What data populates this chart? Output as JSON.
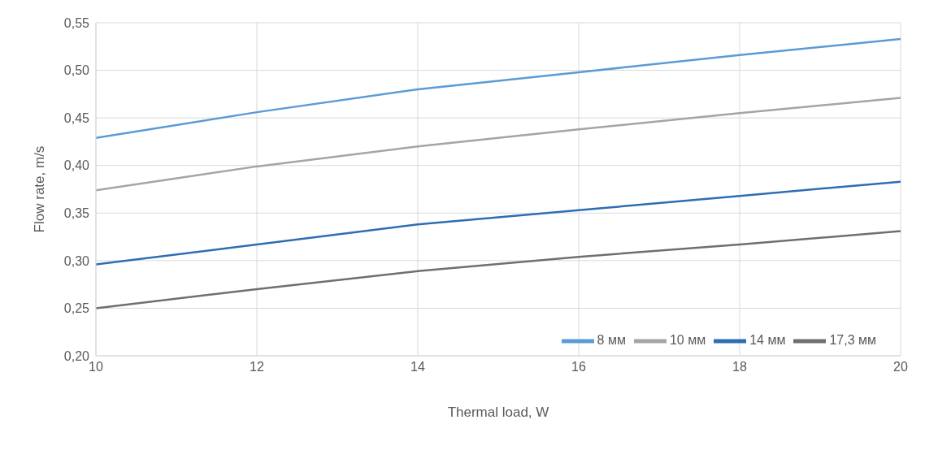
{
  "chart_data": {
    "type": "line",
    "xlabel": "Thermal load, W",
    "ylabel": "Flow rate, m/s",
    "x": [
      10,
      12,
      14,
      16,
      18,
      20
    ],
    "series": [
      {
        "name": "8 мм",
        "color": "#5b9bd5",
        "values": [
          0.429,
          0.456,
          0.48,
          0.498,
          0.516,
          0.533
        ]
      },
      {
        "name": "10 мм",
        "color": "#a5a5a5",
        "values": [
          0.374,
          0.399,
          0.42,
          0.438,
          0.455,
          0.471
        ]
      },
      {
        "name": "14 мм",
        "color": "#2e6db4",
        "values": [
          0.296,
          0.317,
          0.338,
          0.353,
          0.368,
          0.383
        ]
      },
      {
        "name": "17,3 мм",
        "color": "#6f6f6f",
        "values": [
          0.25,
          0.27,
          0.289,
          0.304,
          0.317,
          0.331
        ]
      }
    ],
    "xlim": [
      10,
      20
    ],
    "xticks": [
      10,
      12,
      14,
      16,
      18,
      20
    ],
    "ylim": [
      0.2,
      0.55
    ],
    "yticks": [
      {
        "value": 0.2,
        "label": "0,20"
      },
      {
        "value": 0.25,
        "label": "0,25"
      },
      {
        "value": 0.3,
        "label": "0,30"
      },
      {
        "value": 0.35,
        "label": "0,35"
      },
      {
        "value": 0.4,
        "label": "0,40"
      },
      {
        "value": 0.45,
        "label": "0,45"
      },
      {
        "value": 0.5,
        "label": "0,50"
      },
      {
        "value": 0.55,
        "label": "0,55"
      }
    ],
    "grid": true,
    "legend": "bottom right",
    "marker": "none",
    "line_style": "solid"
  }
}
